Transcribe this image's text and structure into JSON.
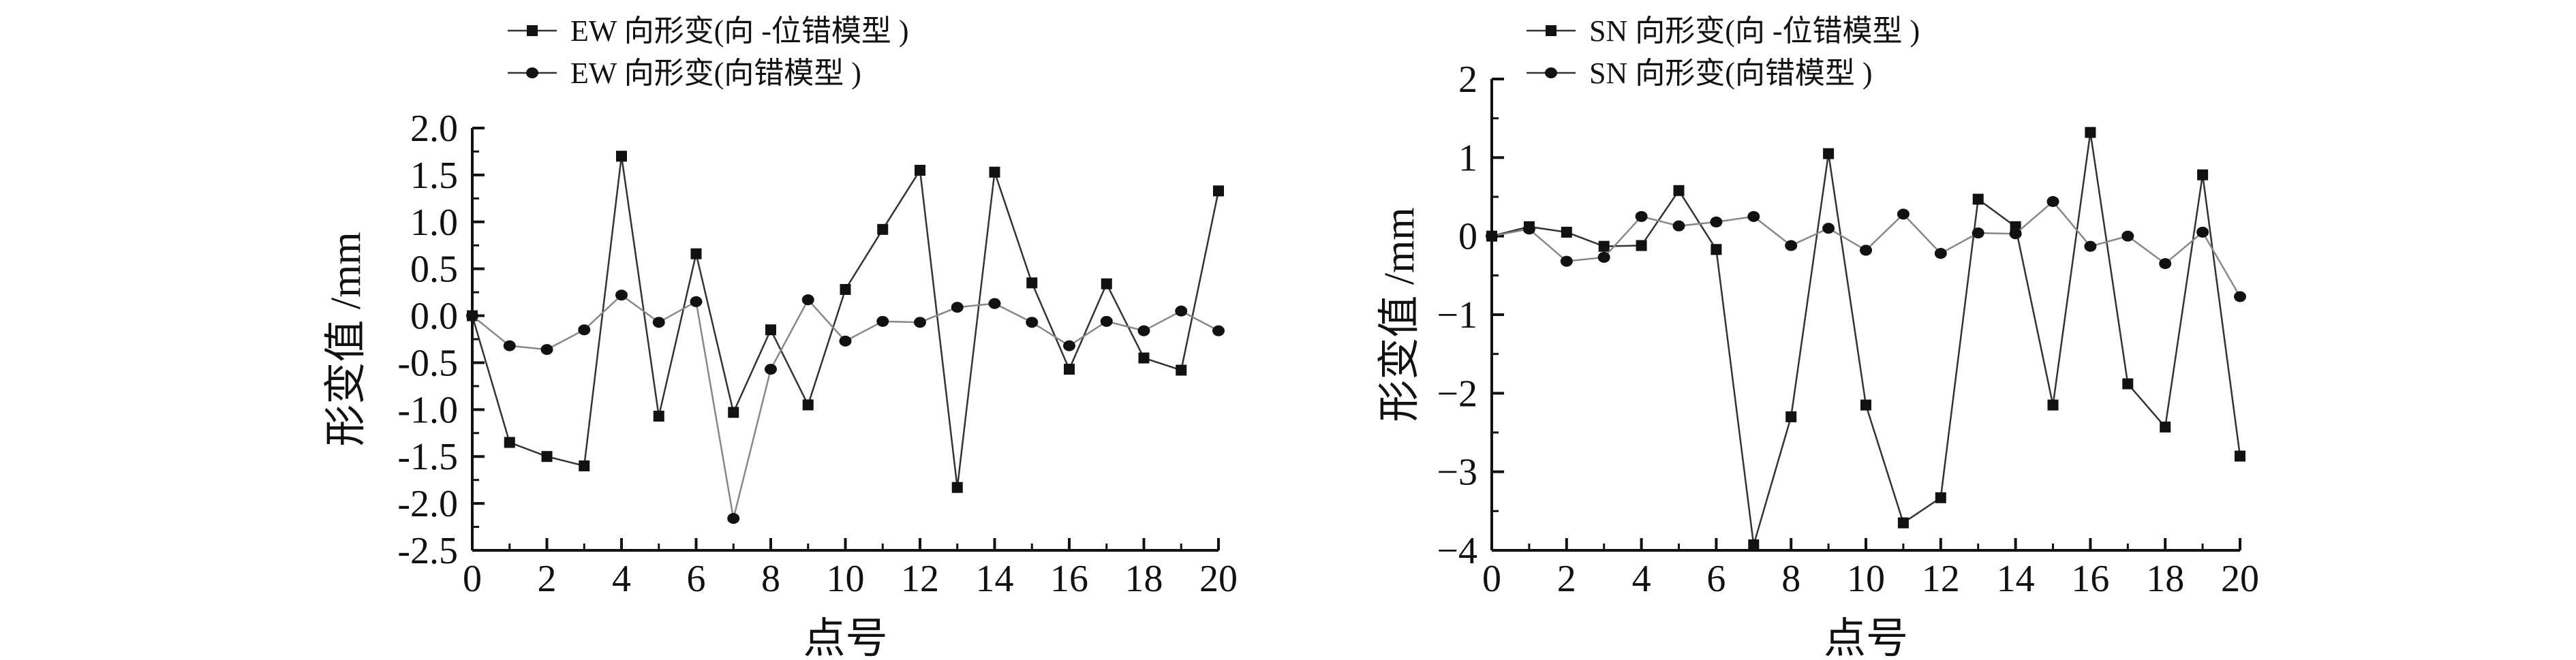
{
  "chart_data": [
    {
      "type": "line",
      "xlabel": "点号",
      "ylabel": "形变值 /mm",
      "xlim": [
        0,
        20
      ],
      "ylim": [
        -2.5,
        2.0
      ],
      "xticks": [
        "0",
        "2",
        "4",
        "6",
        "8",
        "10",
        "12",
        "14",
        "16",
        "18",
        "20"
      ],
      "yticks": [
        "2.0",
        "1.5",
        "1.0",
        "0.5",
        "0.0",
        "-0.5",
        "-1.0",
        "-1.5",
        "-2.0",
        "-2.5"
      ],
      "ytick_values": [
        2.0,
        1.5,
        1.0,
        0.5,
        0.0,
        -0.5,
        -1.0,
        -1.5,
        -2.0,
        -2.5
      ],
      "xtick_values": [
        0,
        2,
        4,
        6,
        8,
        10,
        12,
        14,
        16,
        18,
        20
      ],
      "grid": false,
      "legend_position": "top-left",
      "x": [
        0,
        1,
        2,
        3,
        4,
        5,
        6,
        7,
        8,
        9,
        10,
        11,
        12,
        13,
        14,
        15,
        16,
        17,
        18,
        19,
        20
      ],
      "series": [
        {
          "name": "EW 向形变(向 -位错模型 )",
          "marker": "square",
          "values": [
            0.0,
            -1.35,
            -1.5,
            -1.6,
            1.7,
            -1.07,
            0.66,
            -1.03,
            -0.15,
            -0.95,
            0.28,
            0.92,
            1.55,
            -1.83,
            1.53,
            0.35,
            -0.57,
            0.34,
            -0.45,
            -0.58,
            1.33
          ]
        },
        {
          "name": "EW 向形变(向错模型 )",
          "marker": "circle",
          "values": [
            0.0,
            -0.32,
            -0.36,
            -0.15,
            0.22,
            -0.07,
            0.15,
            -2.16,
            -0.57,
            0.17,
            -0.27,
            -0.06,
            -0.07,
            0.09,
            0.13,
            -0.07,
            -0.32,
            -0.06,
            -0.16,
            0.05,
            -0.16
          ]
        }
      ]
    },
    {
      "type": "line",
      "xlabel": "点号",
      "ylabel": "形变值 /mm",
      "xlim": [
        0,
        20
      ],
      "ylim": [
        -4,
        2
      ],
      "xticks": [
        "0",
        "2",
        "4",
        "6",
        "8",
        "10",
        "12",
        "14",
        "16",
        "18",
        "20"
      ],
      "yticks": [
        "2",
        "1",
        "0",
        "−1",
        "−2",
        "−3",
        "−4"
      ],
      "ytick_values": [
        2,
        1,
        0,
        -1,
        -2,
        -3,
        -4
      ],
      "xtick_values": [
        0,
        2,
        4,
        6,
        8,
        10,
        12,
        14,
        16,
        18,
        20
      ],
      "grid": false,
      "legend_position": "top-left",
      "x": [
        0,
        1,
        2,
        3,
        4,
        5,
        6,
        7,
        8,
        9,
        10,
        11,
        12,
        13,
        14,
        15,
        16,
        17,
        18,
        19,
        20
      ],
      "series": [
        {
          "name": "SN 向形变(向 -位错模型 )",
          "marker": "square",
          "values": [
            0.0,
            0.12,
            0.05,
            -0.13,
            -0.12,
            0.58,
            -0.17,
            -3.93,
            -2.3,
            1.05,
            -2.15,
            -3.65,
            -3.33,
            0.47,
            0.12,
            -2.15,
            1.32,
            -1.88,
            -2.43,
            0.78,
            -2.8
          ]
        },
        {
          "name": "SN 向形变(向错模型 )",
          "marker": "circle",
          "values": [
            0.0,
            0.09,
            -0.32,
            -0.27,
            0.25,
            0.13,
            0.18,
            0.25,
            -0.12,
            0.1,
            -0.18,
            0.28,
            -0.22,
            0.04,
            0.03,
            0.44,
            -0.13,
            0.0,
            -0.35,
            0.05,
            -0.77
          ]
        }
      ]
    }
  ]
}
